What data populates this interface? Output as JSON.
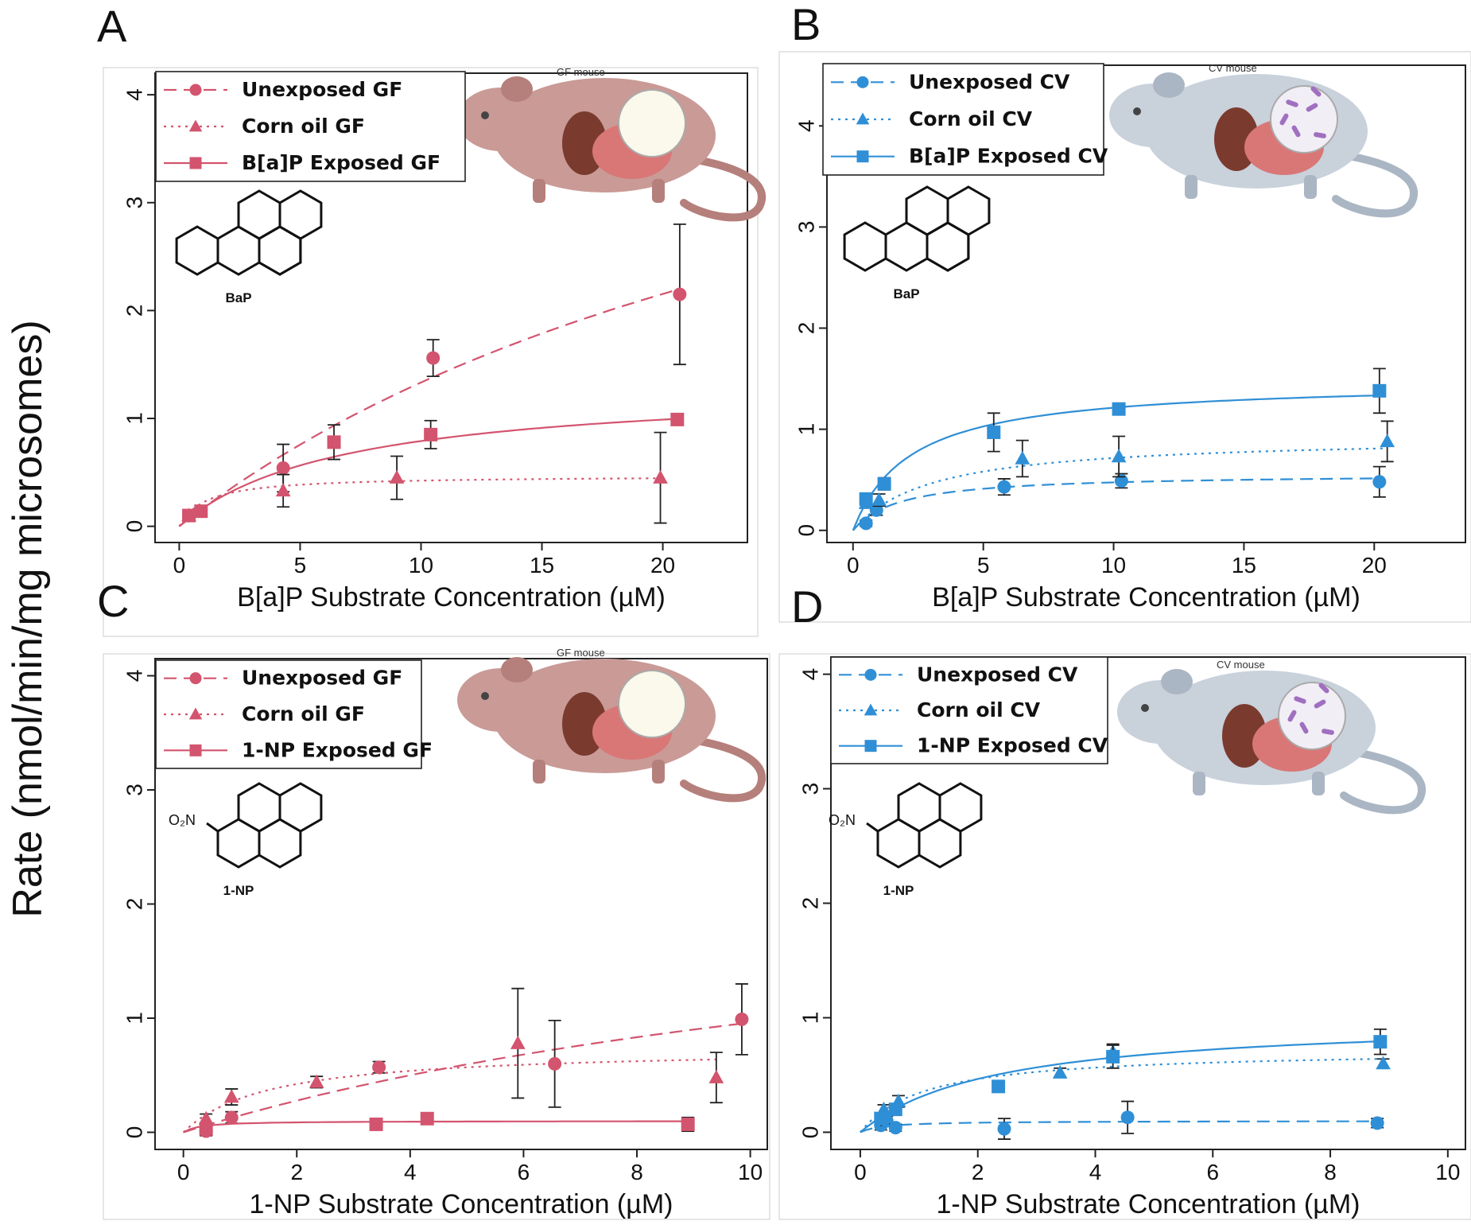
{
  "figure": {
    "y_axis_label": "Rate (nmol/min/mg microsomes)"
  },
  "chart_data": [
    {
      "panel": "A",
      "type": "scatter",
      "mouse_label": "GF mouse",
      "compound": "BaP",
      "compound_smiles_shape": "benzo[a]pyrene",
      "color": "#d3546e",
      "xlabel": "B[a]P Substrate Concentration (µM)",
      "ylabel": "",
      "xlim": [
        -1,
        23.5
      ],
      "ylim": [
        -0.15,
        4.2
      ],
      "xticks": [
        0,
        5,
        10,
        15,
        20
      ],
      "yticks": [
        0,
        1,
        2,
        3,
        4
      ],
      "series": [
        {
          "name": "Unexposed GF",
          "marker": "circle",
          "line": "dashed",
          "x": [
            0.4,
            4.3,
            10.5,
            20.7
          ],
          "y": [
            0.1,
            0.54,
            1.56,
            2.15
          ],
          "err": [
            0.05,
            0.22,
            0.17,
            0.65
          ],
          "fit": {
            "vmax": 5.6,
            "km": 32
          }
        },
        {
          "name": "Corn oil GF",
          "marker": "triangle",
          "line": "dotted",
          "x": [
            0.4,
            4.3,
            9.0,
            19.9
          ],
          "y": [
            0.1,
            0.33,
            0.45,
            0.45
          ],
          "err": [
            0.04,
            0.15,
            0.2,
            0.42
          ],
          "fit": {
            "vmax": 0.47,
            "km": 1.1
          }
        },
        {
          "name": "B[a]P Exposed GF",
          "marker": "square",
          "line": "solid",
          "x": [
            0.4,
            0.9,
            6.4,
            10.4,
            20.6
          ],
          "y": [
            0.1,
            0.14,
            0.78,
            0.85,
            0.99
          ],
          "err": [
            0.05,
            0.05,
            0.16,
            0.13,
            0.05
          ],
          "fit": {
            "vmax": 1.32,
            "km": 6.7
          }
        }
      ]
    },
    {
      "panel": "B",
      "type": "scatter",
      "mouse_label": "CV mouse",
      "compound": "BaP",
      "compound_smiles_shape": "benzo[a]pyrene",
      "color": "#2f8fd6",
      "xlabel": "B[a]P Substrate Concentration (µM)",
      "ylabel": "",
      "xlim": [
        -1,
        23.5
      ],
      "ylim": [
        -0.12,
        4.6
      ],
      "xticks": [
        0,
        5,
        10,
        15,
        20
      ],
      "yticks": [
        0,
        1,
        2,
        3,
        4
      ],
      "series": [
        {
          "name": "Unexposed CV",
          "marker": "circle",
          "line": "dashed",
          "x": [
            0.5,
            0.9,
            5.8,
            10.3,
            20.2
          ],
          "y": [
            0.07,
            0.2,
            0.43,
            0.49,
            0.48
          ],
          "err": [
            0.03,
            0.05,
            0.08,
            0.07,
            0.15
          ],
          "fit": {
            "vmax": 0.56,
            "km": 1.8
          }
        },
        {
          "name": "Corn oil CV",
          "marker": "triangle",
          "line": "dotted",
          "x": [
            0.5,
            1.0,
            6.5,
            10.2,
            20.5
          ],
          "y": [
            0.27,
            0.3,
            0.71,
            0.73,
            0.88
          ],
          "err": [
            0.05,
            0.06,
            0.18,
            0.2,
            0.2
          ],
          "fit": {
            "vmax": 0.93,
            "km": 3.0
          }
        },
        {
          "name": "B[a]P Exposed CV",
          "marker": "square",
          "line": "solid",
          "x": [
            0.5,
            1.2,
            5.4,
            10.2,
            20.2
          ],
          "y": [
            0.31,
            0.46,
            0.97,
            1.2,
            1.38
          ],
          "err": [
            0.05,
            0.06,
            0.19,
            0.04,
            0.22
          ],
          "fit": {
            "vmax": 1.48,
            "km": 2.2
          }
        }
      ]
    },
    {
      "panel": "C",
      "type": "scatter",
      "mouse_label": "GF mouse",
      "compound": "1-NP",
      "compound_smiles_shape": "1-nitropyrene",
      "compound_substituent": "O₂N",
      "color": "#d3546e",
      "xlabel": "1-NP Substrate Concentration (µM)",
      "ylabel": "",
      "xlim": [
        -0.5,
        10.3
      ],
      "ylim": [
        -0.15,
        4.15
      ],
      "xticks": [
        0,
        2,
        4,
        6,
        8,
        10
      ],
      "yticks": [
        0,
        1,
        2,
        3,
        4
      ],
      "series": [
        {
          "name": "Unexposed GF",
          "marker": "circle",
          "line": "dashed",
          "x": [
            0.4,
            0.85,
            3.45,
            6.55,
            9.85
          ],
          "y": [
            0.01,
            0.13,
            0.57,
            0.6,
            0.99
          ],
          "err": [
            0.04,
            0.05,
            0.05,
            0.38,
            0.31
          ],
          "fit": {
            "vmax": 2.5,
            "km": 16
          }
        },
        {
          "name": "Corn oil GF",
          "marker": "triangle",
          "line": "dotted",
          "x": [
            0.4,
            0.85,
            2.35,
            5.9,
            9.4
          ],
          "y": [
            0.12,
            0.31,
            0.44,
            0.78,
            0.48
          ],
          "err": [
            0.04,
            0.07,
            0.05,
            0.48,
            0.22
          ],
          "fit": {
            "vmax": 0.74,
            "km": 1.5
          }
        },
        {
          "name": "1-NP Exposed GF",
          "marker": "square",
          "line": "solid",
          "x": [
            0.4,
            3.4,
            4.3,
            8.9
          ],
          "y": [
            0.03,
            0.07,
            0.12,
            0.07
          ],
          "err": [
            0.03,
            0.04,
            0.04,
            0.06
          ],
          "fit": {
            "vmax": 0.1,
            "km": 0.3
          }
        }
      ]
    },
    {
      "panel": "D",
      "type": "scatter",
      "mouse_label": "CV mouse",
      "compound": "1-NP",
      "compound_smiles_shape": "1-nitropyrene",
      "compound_substituent": "O₂N",
      "color": "#2f8fd6",
      "xlabel": "1-NP Substrate Concentration (µM)",
      "ylabel": "",
      "xlim": [
        -0.5,
        10.3
      ],
      "ylim": [
        -0.15,
        4.15
      ],
      "xticks": [
        0,
        2,
        4,
        6,
        8,
        10
      ],
      "yticks": [
        0,
        1,
        2,
        3,
        4
      ],
      "series": [
        {
          "name": "Unexposed CV",
          "marker": "circle",
          "line": "dashed",
          "x": [
            0.35,
            0.45,
            0.6,
            2.45,
            4.55,
            8.8
          ],
          "y": [
            0.06,
            0.1,
            0.04,
            0.03,
            0.13,
            0.08
          ],
          "err": [
            0.04,
            0.04,
            0.03,
            0.09,
            0.14,
            0.04
          ],
          "fit": {
            "vmax": 0.1,
            "km": 0.4
          }
        },
        {
          "name": "Corn oil CV",
          "marker": "triangle",
          "line": "dotted",
          "x": [
            0.4,
            0.65,
            3.4,
            4.3,
            8.9
          ],
          "y": [
            0.2,
            0.27,
            0.52,
            0.7,
            0.6
          ],
          "err": [
            0.04,
            0.05,
            0.04,
            0.07,
            0.04
          ],
          "fit": {
            "vmax": 0.72,
            "km": 1.1
          }
        },
        {
          "name": "1-NP Exposed CV",
          "marker": "square",
          "line": "solid",
          "x": [
            0.35,
            0.6,
            2.35,
            4.3,
            8.85
          ],
          "y": [
            0.12,
            0.2,
            0.4,
            0.66,
            0.79
          ],
          "err": [
            0.05,
            0.05,
            0.05,
            0.1,
            0.11
          ],
          "fit": {
            "vmax": 1.0,
            "km": 2.3
          }
        }
      ]
    }
  ]
}
